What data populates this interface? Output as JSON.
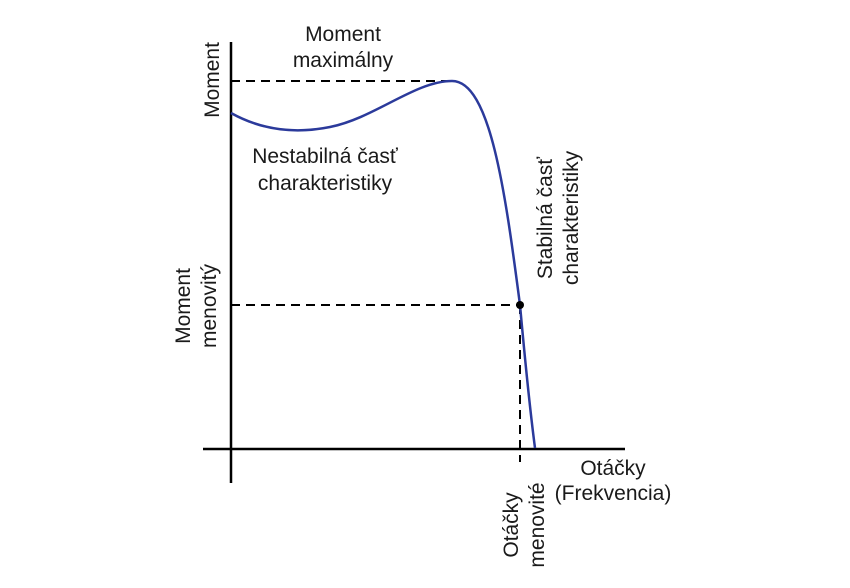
{
  "labels": {
    "y_axis": "Moment",
    "moment_max_line1": "Moment",
    "moment_max_line2": "maximálny",
    "unstable_line1": "Nestabilná časť",
    "unstable_line2": "charakteristiky",
    "stable_line1": "Stabilná časť",
    "stable_line2": "charakteristiky",
    "moment_rated_line1": "Moment",
    "moment_rated_line2": "menovitý",
    "x_axis_line1": "Otáčky",
    "x_axis_line2": "(Frekvencia)",
    "speed_rated_line1": "Otáčky",
    "speed_rated_line2": "menovité"
  },
  "colors": {
    "curve": "#2b3a9b",
    "axes": "#000000",
    "dashed": "#000000",
    "text": "#1a1a1a"
  }
}
